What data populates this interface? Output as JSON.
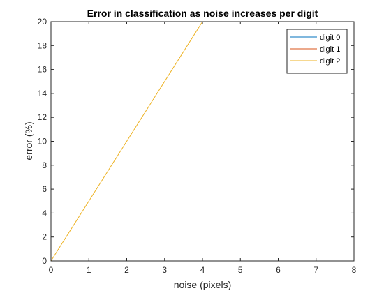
{
  "chart_data": {
    "type": "line",
    "title": "Error in classification as noise increases per digit",
    "xlabel": "noise (pixels)",
    "ylabel": "error (%)",
    "xlim": [
      0,
      8
    ],
    "ylim": [
      0,
      20
    ],
    "xticks": [
      "0",
      "1",
      "2",
      "3",
      "4",
      "5",
      "6",
      "7",
      "8"
    ],
    "yticks": [
      "0",
      "2",
      "4",
      "6",
      "8",
      "10",
      "12",
      "14",
      "16",
      "18",
      "20"
    ],
    "grid": false,
    "legend_position": "top-right",
    "x": [
      0,
      1,
      2,
      3,
      4,
      5,
      6,
      7,
      8
    ],
    "series": [
      {
        "name": "digit 0",
        "color": "#0072BD",
        "values": [
          0,
          0,
          0,
          0,
          0,
          0,
          0,
          0,
          0
        ]
      },
      {
        "name": "digit 1",
        "color": "#D95319",
        "values": [
          0,
          0,
          0,
          0,
          0,
          0,
          0,
          0,
          0
        ]
      },
      {
        "name": "digit 2",
        "color": "#EDB120",
        "values": [
          0,
          5,
          10,
          15,
          20,
          20,
          20,
          20,
          20
        ]
      }
    ]
  }
}
